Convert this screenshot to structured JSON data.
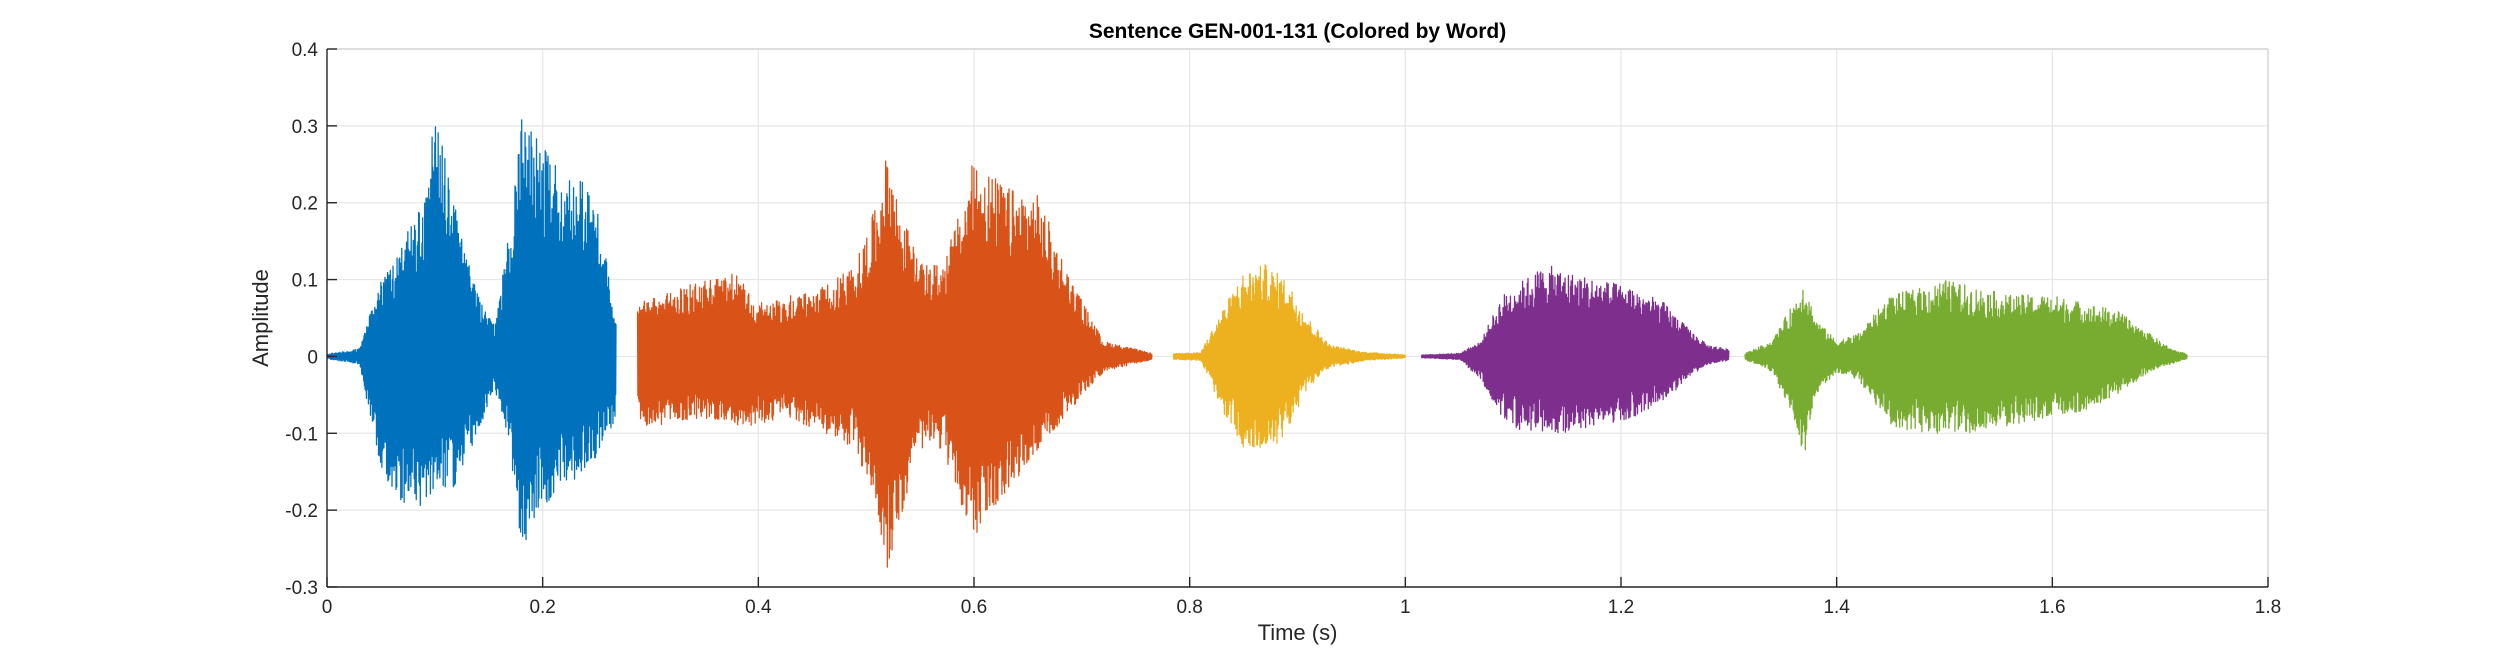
{
  "chart_data": {
    "type": "line",
    "title": "Sentence GEN-001-131 (Colored by Word)",
    "xlabel": "Time (s)",
    "ylabel": "Amplitude",
    "xlim": [
      0,
      1.8
    ],
    "ylim": [
      -0.3,
      0.4
    ],
    "xticks": [
      0,
      0.2,
      0.4,
      0.6,
      0.8,
      1,
      1.2,
      1.4,
      1.6,
      1.8
    ],
    "xtick_labels": [
      "0",
      "0.2",
      "0.4",
      "0.6",
      "0.8",
      "1",
      "1.2",
      "1.4",
      "1.6",
      "1.8"
    ],
    "yticks": [
      -0.3,
      -0.2,
      -0.1,
      0,
      0.1,
      0.2,
      0.3,
      0.4
    ],
    "ytick_labels": [
      "-0.3",
      "-0.2",
      "-0.1",
      "0",
      "0.1",
      "0.2",
      "0.3",
      "0.4"
    ],
    "grid": true,
    "legend": "none",
    "series": [
      {
        "color": "#0072BD",
        "x_start": 0.0,
        "x_end": 0.268,
        "envelope": {
          "t": [
            0.0,
            0.03,
            0.05,
            0.07,
            0.09,
            0.1,
            0.12,
            0.14,
            0.155,
            0.17,
            0.18,
            0.19,
            0.21,
            0.23,
            0.25,
            0.268
          ],
          "upper": [
            0.003,
            0.01,
            0.1,
            0.15,
            0.2,
            0.32,
            0.19,
            0.08,
            0.04,
            0.17,
            0.31,
            0.3,
            0.25,
            0.24,
            0.2,
            0.05
          ],
          "lower": [
            -0.003,
            -0.01,
            -0.15,
            -0.19,
            -0.2,
            -0.18,
            -0.17,
            -0.1,
            -0.04,
            -0.12,
            -0.26,
            -0.22,
            -0.18,
            -0.16,
            -0.13,
            -0.08
          ]
        }
      },
      {
        "color": "#D95319",
        "x_start": 0.288,
        "x_end": 0.765,
        "envelope": {
          "t": [
            0.288,
            0.31,
            0.35,
            0.38,
            0.4,
            0.43,
            0.46,
            0.49,
            0.51,
            0.52,
            0.53,
            0.55,
            0.57,
            0.59,
            0.6,
            0.63,
            0.66,
            0.69,
            0.72,
            0.765
          ],
          "upper": [
            0.07,
            0.08,
            0.1,
            0.11,
            0.07,
            0.08,
            0.09,
            0.12,
            0.2,
            0.27,
            0.2,
            0.12,
            0.12,
            0.2,
            0.26,
            0.22,
            0.21,
            0.1,
            0.02,
            0.004
          ],
          "lower": [
            -0.09,
            -0.09,
            -0.08,
            -0.09,
            -0.09,
            -0.08,
            -0.1,
            -0.12,
            -0.2,
            -0.28,
            -0.22,
            -0.12,
            -0.12,
            -0.2,
            -0.24,
            -0.18,
            -0.12,
            -0.07,
            -0.02,
            -0.004
          ]
        }
      },
      {
        "color": "#EDB120",
        "x_start": 0.785,
        "x_end": 1.0,
        "envelope": {
          "t": [
            0.785,
            0.81,
            0.83,
            0.85,
            0.87,
            0.89,
            0.91,
            0.93,
            0.96,
            1.0
          ],
          "upper": [
            0.004,
            0.005,
            0.06,
            0.11,
            0.12,
            0.1,
            0.05,
            0.015,
            0.006,
            0.002
          ],
          "lower": [
            -0.004,
            -0.005,
            -0.07,
            -0.12,
            -0.13,
            -0.1,
            -0.04,
            -0.015,
            -0.006,
            -0.002
          ]
        }
      },
      {
        "color": "#7E2F8E",
        "x_start": 1.015,
        "x_end": 1.3,
        "envelope": {
          "t": [
            1.015,
            1.05,
            1.07,
            1.09,
            1.11,
            1.13,
            1.15,
            1.18,
            1.21,
            1.24,
            1.26,
            1.28,
            1.3
          ],
          "upper": [
            0.002,
            0.004,
            0.02,
            0.08,
            0.1,
            0.12,
            0.11,
            0.1,
            0.09,
            0.07,
            0.04,
            0.015,
            0.01
          ],
          "lower": [
            -0.002,
            -0.004,
            -0.03,
            -0.08,
            -0.1,
            -0.1,
            -0.1,
            -0.09,
            -0.08,
            -0.06,
            -0.03,
            -0.01,
            -0.005
          ]
        }
      },
      {
        "color": "#77AC30",
        "x_start": 1.315,
        "x_end": 1.725,
        "envelope": {
          "t": [
            1.315,
            1.34,
            1.36,
            1.37,
            1.38,
            1.4,
            1.42,
            1.45,
            1.48,
            1.5,
            1.53,
            1.56,
            1.6,
            1.63,
            1.66,
            1.69,
            1.71,
            1.725
          ],
          "upper": [
            0.004,
            0.02,
            0.07,
            0.1,
            0.05,
            0.02,
            0.03,
            0.08,
            0.09,
            0.1,
            0.09,
            0.08,
            0.08,
            0.07,
            0.06,
            0.03,
            0.01,
            0.003
          ],
          "lower": [
            -0.004,
            -0.02,
            -0.08,
            -0.13,
            -0.05,
            -0.02,
            -0.03,
            -0.09,
            -0.1,
            -0.1,
            -0.1,
            -0.09,
            -0.08,
            -0.07,
            -0.05,
            -0.02,
            -0.01,
            -0.003
          ]
        }
      }
    ]
  }
}
